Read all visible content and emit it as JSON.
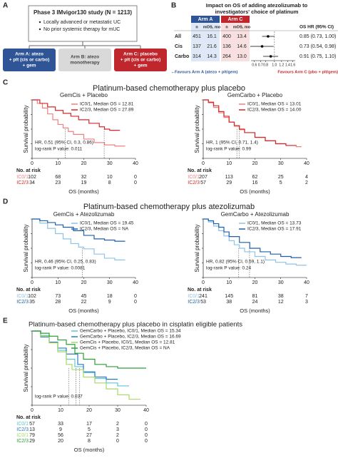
{
  "panel_labels": [
    "A",
    "B",
    "C",
    "D",
    "E"
  ],
  "diagram": {
    "title": "Phase 3 IMvigor130 study (N = 1213)",
    "bullets": [
      "Locally advanced or metastatic UC",
      "No prior systemic therapy for mUC"
    ],
    "arms": [
      {
        "lines": [
          "Arm A: atezo",
          "+ plt (cis or carbo)",
          "+ gem"
        ],
        "color": "#2f5597"
      },
      {
        "lines": [
          "Arm B: atezo",
          "monotherapy"
        ],
        "color": "#d9d9d9"
      },
      {
        "lines": [
          "Arm C: placebo",
          "+ plt (cis or carbo)",
          "+ gem"
        ],
        "color": "#c0272d"
      }
    ]
  },
  "section_titles": [
    "Platinum-based chemotherapy plus placebo",
    "Platinum-based chemotherapy plus atezolizumab",
    "Platinum-based chemotherapy plus placebo in cisplatin eligible patients"
  ],
  "chart_data": [
    {
      "type": "forest",
      "title": [
        "Impact on OS of adding atezolizumab to",
        "investigators' choice of platinum"
      ],
      "arm_a": "Arm A",
      "arm_c": "Arm C",
      "col_n": "n",
      "col_mos": "mOS, mo",
      "col_hr": "OS HR (95% CI)",
      "arm_a_color": "#2f5597",
      "arm_c_color": "#c0272d",
      "rows": [
        {
          "label": "All",
          "n_a": 451,
          "mos_a": "16.1",
          "n_c": 400,
          "mos_c": "13.4",
          "hr": 0.85,
          "ci": [
            0.73,
            1.0
          ],
          "hr_label": "0.85 (0.73, 1.00)"
        },
        {
          "label": "Cis",
          "n_a": 137,
          "mos_a": "21.6",
          "n_c": 136,
          "mos_c": "14.6",
          "hr": 0.73,
          "ci": [
            0.54,
            0.98
          ],
          "hr_label": "0.73 (0.54, 0.98)"
        },
        {
          "label": "Carbo",
          "n_a": 314,
          "mos_a": "14.3",
          "n_c": 264,
          "mos_c": "13.0",
          "hr": 0.91,
          "ci": [
            0.75,
            1.1
          ],
          "hr_label": "0.91 (0.75, 1.10)"
        }
      ],
      "log_scale": true,
      "xlim": [
        0.55,
        1.7
      ],
      "xticks": [
        0.6,
        0.7,
        0.8,
        {
          "value": 1,
          "label": "1.0"
        },
        1.2,
        1.4,
        1.6
      ],
      "reference": 1,
      "favour_a": "Favours Arm A (atezo + plt/gem)",
      "favour_c": "Favours Arm C (pbo + plt/gem)"
    },
    {
      "type": "km",
      "title": "GemCis + Placebo",
      "ylabel": "Survival probability",
      "xlabel": "OS (months)",
      "risk_title": "No. at risk",
      "xlim": [
        0,
        40
      ],
      "xticks": [
        0,
        10,
        20,
        30,
        40
      ],
      "ylim": [
        0,
        1
      ],
      "yticks": [
        0,
        0.25,
        0.5,
        0.75,
        1
      ],
      "annotations": [
        "HR, 0.51 (95% CI, 0.3, 0.86)",
        "log-rank P value: 0.011"
      ],
      "series": [
        {
          "name": "IC0/1, Median OS = 12.81",
          "risk_label": "IC0/1",
          "color": "#f08080",
          "median": 12.81,
          "x": [
            0,
            2,
            4,
            6,
            8,
            10,
            12,
            14,
            16,
            20,
            24,
            28,
            32,
            36
          ],
          "values": [
            1,
            0.94,
            0.86,
            0.76,
            0.66,
            0.58,
            0.52,
            0.46,
            0.41,
            0.33,
            0.27,
            0.23,
            0.21,
            0.21
          ],
          "at_risk": [
            102,
            68,
            32,
            10,
            0
          ]
        },
        {
          "name": "IC2/3, Median OS = 27.89",
          "risk_label": "IC2/3",
          "color": "#d62728",
          "median": 27.89,
          "x": [
            0,
            3,
            6,
            9,
            12,
            15,
            18,
            22,
            26,
            28,
            30,
            34
          ],
          "values": [
            1,
            0.94,
            0.88,
            0.82,
            0.77,
            0.72,
            0.66,
            0.6,
            0.54,
            0.5,
            0.48,
            0.48
          ],
          "at_risk": [
            34,
            23,
            19,
            8,
            0
          ]
        }
      ]
    },
    {
      "type": "km",
      "title": "GemCarbo + Placebo",
      "ylabel": "Survival probability",
      "xlabel": "OS (months)",
      "risk_title": "No. at risk",
      "xlim": [
        0,
        40
      ],
      "xticks": [
        0,
        10,
        20,
        30,
        40
      ],
      "ylim": [
        0,
        1
      ],
      "yticks": [
        0,
        0.25,
        0.5,
        0.75,
        1
      ],
      "annotations": [
        "HR, 1 (95% CI, 0.71, 1.4)",
        "log-rank P value: 0.99"
      ],
      "series": [
        {
          "name": "IC0/1, Median OS = 13.01",
          "risk_label": "IC0/1",
          "color": "#f08080",
          "median": 13.01,
          "x": [
            0,
            2,
            4,
            6,
            8,
            10,
            12,
            14,
            16,
            20,
            24,
            28,
            32,
            36,
            38
          ],
          "values": [
            1,
            0.95,
            0.87,
            0.78,
            0.7,
            0.62,
            0.55,
            0.49,
            0.44,
            0.36,
            0.3,
            0.25,
            0.22,
            0.2,
            0.2
          ],
          "at_risk": [
            207,
            113,
            62,
            25,
            4
          ]
        },
        {
          "name": "IC2/3, Median OS = 14.00",
          "risk_label": "IC2/3",
          "color": "#d62728",
          "median": 14.0,
          "x": [
            0,
            2,
            4,
            6,
            8,
            10,
            12,
            14,
            16,
            20,
            24,
            28,
            32,
            36
          ],
          "values": [
            1,
            0.96,
            0.9,
            0.8,
            0.72,
            0.62,
            0.56,
            0.5,
            0.44,
            0.36,
            0.3,
            0.25,
            0.22,
            0.22
          ],
          "at_risk": [
            57,
            29,
            16,
            5,
            2
          ]
        }
      ]
    },
    {
      "type": "km",
      "title": "GemCis + Atezolizumab",
      "ylabel": "Survival probability",
      "xlabel": "OS (months)",
      "risk_title": "No. at risk",
      "xlim": [
        0,
        40
      ],
      "xticks": [
        0,
        10,
        20,
        30,
        40
      ],
      "ylim": [
        0,
        1
      ],
      "yticks": [
        0,
        0.25,
        0.5,
        0.75,
        1
      ],
      "annotations": [
        "HR, 0.46 (95% CI, 0.25, 0.83)",
        "log-rank P value: 0.0081"
      ],
      "series": [
        {
          "name": "IC0/1, Median OS = 19.45",
          "risk_label": "IC0/1",
          "color": "#8ec3e6",
          "median": 19.45,
          "x": [
            0,
            3,
            6,
            9,
            12,
            15,
            18,
            20,
            24,
            28,
            32,
            36
          ],
          "values": [
            1,
            0.93,
            0.84,
            0.75,
            0.66,
            0.58,
            0.52,
            0.49,
            0.4,
            0.33,
            0.3,
            0.3
          ],
          "at_risk": [
            102,
            73,
            45,
            18,
            0
          ]
        },
        {
          "name": "IC2/3, Median OS = NA",
          "risk_label": "IC2/3",
          "color": "#1f5fa8",
          "median": null,
          "x": [
            0,
            3,
            6,
            9,
            12,
            16,
            20,
            24,
            28,
            32,
            36
          ],
          "values": [
            1,
            0.97,
            0.94,
            0.9,
            0.86,
            0.8,
            0.72,
            0.66,
            0.64,
            0.62,
            0.62
          ],
          "at_risk": [
            35,
            28,
            22,
            9,
            0
          ]
        }
      ]
    },
    {
      "type": "km",
      "title": "GemCarbo + Atezolizumab",
      "ylabel": "Survival probability",
      "xlabel": "OS (months)",
      "risk_title": "No. at risk",
      "xlim": [
        0,
        40
      ],
      "xticks": [
        0,
        10,
        20,
        30,
        40
      ],
      "ylim": [
        0,
        1
      ],
      "yticks": [
        0,
        0.25,
        0.5,
        0.75,
        1
      ],
      "annotations": [
        "HR, 0.82 (95% CI, 0.59, 1.1)",
        "log-rank P value: 0.24"
      ],
      "series": [
        {
          "name": "IC0/1, Median OS = 13.73",
          "risk_label": "IC0/1",
          "color": "#8ec3e6",
          "median": 13.73,
          "x": [
            0,
            2,
            4,
            6,
            8,
            10,
            12,
            14,
            16,
            20,
            24,
            28,
            32,
            36,
            40
          ],
          "values": [
            1,
            0.95,
            0.88,
            0.8,
            0.71,
            0.63,
            0.56,
            0.5,
            0.44,
            0.36,
            0.3,
            0.26,
            0.23,
            0.21,
            0.21
          ],
          "at_risk": [
            241,
            145,
            81,
            38,
            7
          ]
        },
        {
          "name": "IC2/3, Median OS = 17.91",
          "risk_label": "IC2/3",
          "color": "#1f5fa8",
          "median": 17.91,
          "x": [
            0,
            2,
            4,
            6,
            8,
            10,
            14,
            18,
            22,
            26,
            30,
            34,
            38
          ],
          "values": [
            1,
            0.97,
            0.92,
            0.86,
            0.78,
            0.7,
            0.6,
            0.5,
            0.44,
            0.4,
            0.36,
            0.34,
            0.34
          ],
          "at_risk": [
            53,
            38,
            24,
            12,
            3
          ]
        }
      ]
    },
    {
      "type": "km",
      "ylabel": "Survival probability",
      "xlabel": "OS (months)",
      "risk_title": "No. at risk",
      "xlim": [
        0,
        40
      ],
      "xticks": [
        0,
        10,
        20,
        30,
        40
      ],
      "ylim": [
        0,
        1
      ],
      "yticks": [
        0,
        0.25,
        0.5,
        0.75,
        1
      ],
      "annotations": [
        "log-rank P value: 0.037"
      ],
      "series": [
        {
          "name": "GemCarbo + Placebo, IC0/1, Median OS = 15.34",
          "risk_label": "IC0/1",
          "color": "#5fc4d6",
          "median": 15.34,
          "x": [
            0,
            3,
            6,
            9,
            12,
            15,
            18,
            22,
            26,
            30,
            34
          ],
          "values": [
            1,
            0.94,
            0.85,
            0.74,
            0.62,
            0.52,
            0.44,
            0.36,
            0.3,
            0.26,
            0.26
          ],
          "at_risk": [
            57,
            33,
            17,
            2,
            0
          ]
        },
        {
          "name": "GemCarbo + Placebo, IC2/3, Median OS = 16.69",
          "risk_label": "IC2/3",
          "color": "#2b7bba",
          "median": 16.69,
          "x": [
            0,
            3,
            6,
            9,
            12,
            16,
            18,
            22,
            26,
            30
          ],
          "values": [
            1,
            0.92,
            0.85,
            0.77,
            0.69,
            0.55,
            0.45,
            0.38,
            0.35,
            0.35
          ],
          "at_risk": [
            13,
            9,
            5,
            3,
            0
          ]
        },
        {
          "name": "GemCis + Placebo, IC0/1, Median OS = 12.81",
          "risk_label": "IC0/1",
          "color": "#a6d96a",
          "median": 12.81,
          "x": [
            0,
            3,
            6,
            9,
            12,
            14,
            18,
            22,
            26,
            30,
            34,
            38
          ],
          "values": [
            1,
            0.93,
            0.84,
            0.72,
            0.55,
            0.48,
            0.38,
            0.3,
            0.22,
            0.14,
            0.08,
            0.08
          ],
          "at_risk": [
            79,
            56,
            27,
            2,
            0
          ]
        },
        {
          "name": "GemCis + Placebo, IC2/3, Median OS = NA",
          "risk_label": "IC2/3",
          "color": "#2e9e3a",
          "median": null,
          "x": [
            0,
            3,
            6,
            9,
            12,
            15,
            18,
            22,
            26,
            30,
            34,
            40
          ],
          "values": [
            1,
            0.97,
            0.93,
            0.88,
            0.82,
            0.7,
            0.62,
            0.55,
            0.52,
            0.5,
            0.5,
            0.5
          ],
          "at_risk": [
            29,
            20,
            8,
            0,
            0
          ]
        }
      ]
    }
  ]
}
